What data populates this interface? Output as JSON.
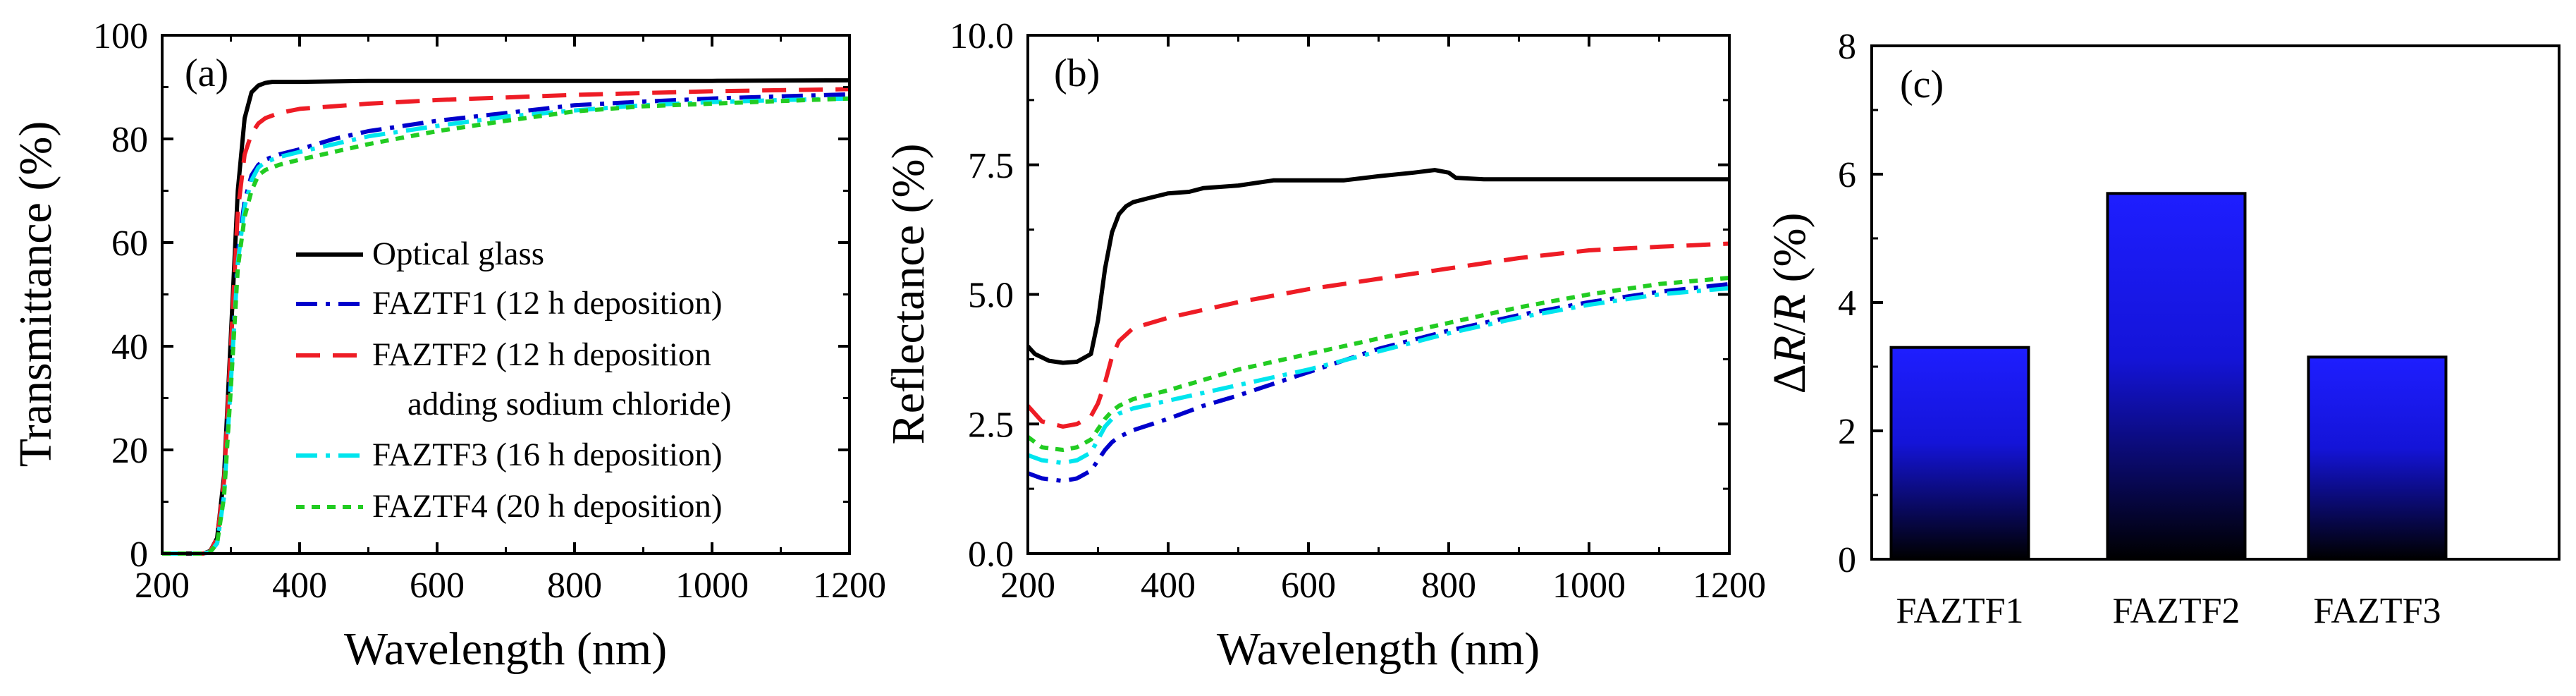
{
  "chart_data": [
    {
      "type": "line",
      "panel_label": "(a)",
      "xlabel": "Wavelength (nm)",
      "ylabel": "Transmittance (%)",
      "xlim": [
        200,
        1200
      ],
      "ylim": [
        0,
        100
      ],
      "xticks": [
        200,
        400,
        600,
        800,
        1000,
        1200
      ],
      "yticks": [
        0,
        20,
        40,
        60,
        80,
        100
      ],
      "legend_position": "center-right",
      "series": [
        {
          "name": "Optical glass",
          "color": "#000000",
          "dash": "solid",
          "x": [
            200,
            260,
            270,
            280,
            290,
            300,
            310,
            320,
            330,
            340,
            350,
            360,
            380,
            400,
            500,
            600,
            800,
            1000,
            1200
          ],
          "y": [
            0,
            0,
            0.5,
            3,
            15,
            42,
            70,
            84,
            89,
            90.3,
            90.8,
            91,
            91,
            91,
            91.2,
            91.2,
            91.2,
            91.2,
            91.3
          ]
        },
        {
          "name": "FAZTF1 (12 h deposition)",
          "color": "#0000CC",
          "dash": "dashdot",
          "x": [
            200,
            260,
            270,
            280,
            290,
            300,
            310,
            320,
            330,
            340,
            350,
            370,
            400,
            450,
            500,
            600,
            700,
            800,
            900,
            1000,
            1100,
            1200
          ],
          "y": [
            0,
            0,
            0.3,
            2,
            12,
            35,
            58,
            68,
            73,
            75,
            76,
            77,
            78,
            80,
            81.5,
            83.5,
            85,
            86.5,
            87.2,
            87.8,
            88.2,
            88.6
          ]
        },
        {
          "name": "FAZTF2 (12 h deposition",
          "name_line2": "adding sodium chloride)",
          "color": "#EE1C25",
          "dash": "dashed",
          "x": [
            200,
            260,
            270,
            280,
            290,
            300,
            310,
            320,
            330,
            340,
            350,
            370,
            400,
            500,
            600,
            800,
            1000,
            1200
          ],
          "y": [
            0,
            0,
            0.4,
            3,
            14,
            40,
            66,
            77,
            81,
            83,
            84,
            85,
            85.8,
            86.8,
            87.5,
            88.5,
            89.2,
            89.6
          ]
        },
        {
          "name": "FAZTF3 (16 h deposition)",
          "color": "#00E5EE",
          "dash": "dashdot",
          "x": [
            200,
            260,
            270,
            280,
            290,
            300,
            310,
            320,
            330,
            340,
            350,
            370,
            400,
            450,
            500,
            600,
            700,
            800,
            900,
            1000,
            1100,
            1200
          ],
          "y": [
            0,
            0,
            0.3,
            2,
            11,
            33,
            56,
            67,
            72,
            74.5,
            75.5,
            76.5,
            77.5,
            79,
            80.5,
            82.5,
            84.3,
            85.5,
            86.5,
            87.1,
            87.5,
            87.8
          ]
        },
        {
          "name": "FAZTF4 (20 h deposition)",
          "color": "#22CC22",
          "dash": "dotted",
          "x": [
            200,
            260,
            270,
            280,
            290,
            300,
            310,
            320,
            330,
            340,
            350,
            370,
            400,
            450,
            500,
            600,
            700,
            800,
            900,
            1000,
            1100,
            1200
          ],
          "y": [
            0,
            0,
            0.3,
            2,
            11,
            32,
            55,
            65,
            70,
            73,
            74,
            75,
            76,
            77.5,
            79,
            81.5,
            83.5,
            85.3,
            86.3,
            86.8,
            87.3,
            87.8
          ]
        }
      ]
    },
    {
      "type": "line",
      "panel_label": "(b)",
      "xlabel": "Wavelength (nm)",
      "ylabel": "Reflectance (%)",
      "xlim": [
        200,
        1200
      ],
      "ylim": [
        0,
        10
      ],
      "xticks": [
        200,
        400,
        600,
        800,
        1000,
        1200
      ],
      "yticks": [
        0.0,
        2.5,
        5.0,
        7.5,
        10.0
      ],
      "ytick_labels": [
        "0.0",
        "2.5",
        "5.0",
        "7.5",
        "10.0"
      ],
      "series": [
        {
          "name": "Optical glass",
          "color": "#000000",
          "dash": "solid",
          "x": [
            200,
            210,
            230,
            250,
            270,
            290,
            300,
            310,
            320,
            330,
            340,
            350,
            370,
            400,
            430,
            450,
            500,
            550,
            600,
            650,
            700,
            750,
            780,
            800,
            810,
            850,
            900,
            1000,
            1100,
            1200
          ],
          "y": [
            4.0,
            3.85,
            3.72,
            3.68,
            3.7,
            3.85,
            4.5,
            5.5,
            6.2,
            6.55,
            6.7,
            6.78,
            6.85,
            6.95,
            6.98,
            7.05,
            7.1,
            7.2,
            7.2,
            7.2,
            7.28,
            7.35,
            7.4,
            7.35,
            7.25,
            7.22,
            7.22,
            7.22,
            7.22,
            7.22
          ]
        },
        {
          "name": "FAZTF1 (12 h deposition)",
          "color": "#0000CC",
          "dash": "dashdot",
          "x": [
            200,
            220,
            250,
            270,
            290,
            300,
            310,
            320,
            330,
            350,
            400,
            450,
            500,
            600,
            700,
            800,
            900,
            1000,
            1100,
            1200
          ],
          "y": [
            1.55,
            1.45,
            1.4,
            1.45,
            1.6,
            1.8,
            2.0,
            2.15,
            2.25,
            2.38,
            2.6,
            2.85,
            3.05,
            3.5,
            3.95,
            4.3,
            4.6,
            4.85,
            5.05,
            5.2
          ]
        },
        {
          "name": "FAZTF2 (12 h deposition adding sodium chloride)",
          "color": "#EE1C25",
          "dash": "dashed",
          "x": [
            200,
            220,
            250,
            270,
            290,
            300,
            310,
            320,
            330,
            350,
            400,
            450,
            500,
            600,
            700,
            800,
            900,
            1000,
            1100,
            1200
          ],
          "y": [
            2.85,
            2.55,
            2.45,
            2.5,
            2.65,
            2.9,
            3.3,
            3.8,
            4.1,
            4.35,
            4.55,
            4.7,
            4.85,
            5.1,
            5.3,
            5.5,
            5.7,
            5.85,
            5.92,
            5.98
          ]
        },
        {
          "name": "FAZTF3 (16 h deposition)",
          "color": "#00E5EE",
          "dash": "dashdot",
          "x": [
            200,
            220,
            250,
            270,
            290,
            300,
            310,
            320,
            330,
            350,
            400,
            450,
            500,
            600,
            700,
            800,
            900,
            1000,
            1100,
            1200
          ],
          "y": [
            1.9,
            1.8,
            1.75,
            1.8,
            1.95,
            2.2,
            2.45,
            2.6,
            2.7,
            2.8,
            2.95,
            3.1,
            3.25,
            3.55,
            3.9,
            4.25,
            4.55,
            4.8,
            5.0,
            5.12
          ]
        },
        {
          "name": "FAZTF4 (20 h deposition)",
          "color": "#22CC22",
          "dash": "dotted",
          "x": [
            200,
            220,
            250,
            270,
            290,
            300,
            310,
            320,
            330,
            350,
            400,
            450,
            500,
            600,
            700,
            800,
            900,
            1000,
            1100,
            1200
          ],
          "y": [
            2.25,
            2.05,
            2.0,
            2.05,
            2.2,
            2.4,
            2.6,
            2.75,
            2.85,
            2.98,
            3.15,
            3.35,
            3.55,
            3.85,
            4.15,
            4.45,
            4.75,
            5.0,
            5.2,
            5.32
          ]
        }
      ]
    },
    {
      "type": "bar",
      "panel_label": "(c)",
      "ylabel_symbol": "R",
      "ylabel_prefix": "Δ",
      "ylabel_slash": "/",
      "ylabel_unit": " (%)",
      "categories": [
        "FAZTF1",
        "FAZTF2",
        "FAZTF3"
      ],
      "values": [
        3.3,
        5.7,
        3.15
      ],
      "ylim": [
        0,
        8
      ],
      "yticks": [
        0,
        2,
        4,
        6,
        8
      ],
      "bar_gradient": {
        "top": "#1E1EFF",
        "bottom": "#000000"
      }
    }
  ]
}
